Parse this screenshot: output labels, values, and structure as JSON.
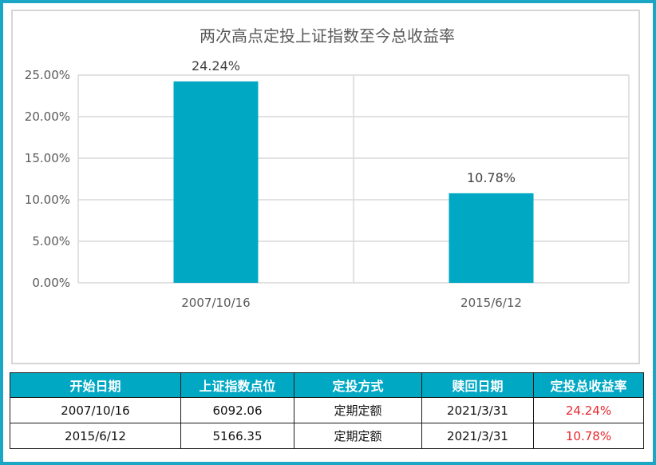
{
  "chart_data": {
    "type": "bar",
    "title": "两次高点定投上证指数至今总收益率",
    "categories": [
      "2007/10/16",
      "2015/6/12"
    ],
    "values": [
      24.24,
      10.78
    ],
    "data_labels": [
      "24.24%",
      "10.78%"
    ],
    "ylim": [
      0,
      25
    ],
    "yticks": [
      0,
      5,
      10,
      15,
      20,
      25
    ],
    "ytick_labels": [
      "0.00%",
      "5.00%",
      "10.00%",
      "15.00%",
      "20.00%",
      "25.00%"
    ],
    "grid": true,
    "bar_color": "#00a8c4"
  },
  "table": {
    "headers": [
      "开始日期",
      "上证指数点位",
      "定投方式",
      "赎回日期",
      "定投总收益率"
    ],
    "rows": [
      [
        "2007/10/16",
        "6092.06",
        "定期定额",
        "2021/3/31",
        "24.24%"
      ],
      [
        "2015/6/12",
        "5166.35",
        "定期定额",
        "2021/3/31",
        "10.78%"
      ]
    ]
  },
  "colors": {
    "frame": "#1aa6c4",
    "header_bg": "#00a8c4",
    "rate_text": "#e8262c"
  }
}
